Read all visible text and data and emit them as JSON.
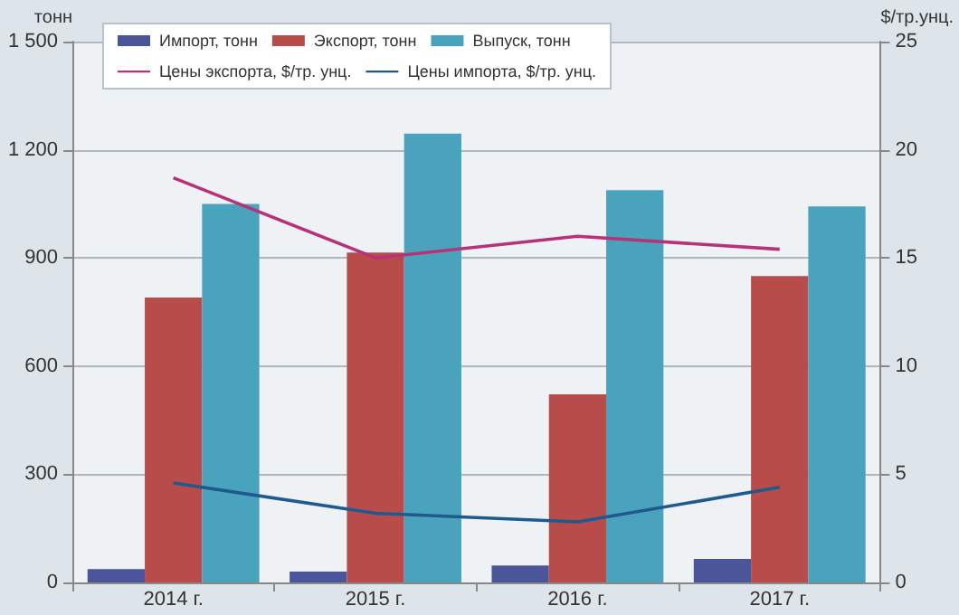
{
  "chart_data": {
    "type": "bar",
    "ylabel": "тонн",
    "y2label": "$/тр.унц.",
    "categories": [
      "2014 г.",
      "2015 г.",
      "2016 г.",
      "2017 г."
    ],
    "series": [
      {
        "name": "Импорт, тонн",
        "color": "#4a5699",
        "values": [
          37,
          30,
          47,
          65
        ]
      },
      {
        "name": "Экспорт, тонн",
        "color": "#b84c4a",
        "values": [
          790,
          915,
          522,
          850
        ]
      },
      {
        "name": "Выпуск, тонн",
        "color": "#4aa3bd",
        "values": [
          1050,
          1245,
          1088,
          1043
        ]
      },
      {
        "name": "Цены экспорта, $/тр. унц.",
        "type": "line",
        "axis": "y2",
        "color": "#b8327a",
        "values": [
          18.7,
          15.0,
          16.0,
          15.4
        ]
      },
      {
        "name": "Цены импорта, $/тр. унц.",
        "type": "line",
        "axis": "y2",
        "color": "#1f5a8f",
        "values": [
          4.6,
          3.2,
          2.8,
          4.4
        ]
      }
    ],
    "ylim": [
      0,
      1500
    ],
    "yticks": [
      0,
      300,
      600,
      900,
      {
        "value": 1200,
        "label": "1 200"
      },
      {
        "value": 1500,
        "label": "1 500"
      }
    ],
    "y2lim": [
      0,
      25
    ],
    "y2ticks": [
      0,
      5,
      10,
      15,
      20,
      25
    ],
    "grid": "y",
    "legend": "top",
    "marker": "none"
  }
}
